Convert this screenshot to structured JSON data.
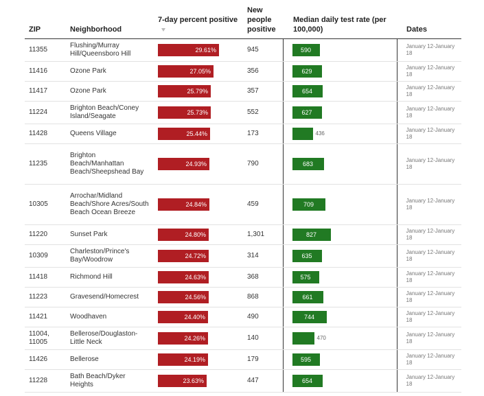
{
  "headers": {
    "zip": "ZIP",
    "neighborhood": "Neighborhood",
    "positive": "7-day percent positive",
    "new_people": "New people positive",
    "test_rate": "Median daily test rate (per 100,000)",
    "dates": "Dates"
  },
  "colors": {
    "positive_bar": "#b01e23",
    "rate_bar": "#217a23"
  },
  "rows": [
    {
      "zip": "11355",
      "neighborhood": "Flushing/Murray Hill/Queensboro Hill",
      "positive": "29.61%",
      "positive_value": 29.61,
      "new_people": "945",
      "rate": "590",
      "rate_value": 590,
      "dates": "January 12-January 18"
    },
    {
      "zip": "11416",
      "neighborhood": "Ozone Park",
      "positive": "27.05%",
      "positive_value": 27.05,
      "new_people": "356",
      "rate": "629",
      "rate_value": 629,
      "dates": "January 12-January 18"
    },
    {
      "zip": "11417",
      "neighborhood": "Ozone Park",
      "positive": "25.79%",
      "positive_value": 25.79,
      "new_people": "357",
      "rate": "654",
      "rate_value": 654,
      "dates": "January 12-January 18"
    },
    {
      "zip": "11224",
      "neighborhood": "Brighton Beach/Coney Island/Seagate",
      "positive": "25.73%",
      "positive_value": 25.73,
      "new_people": "552",
      "rate": "627",
      "rate_value": 627,
      "dates": "January 12-January 18"
    },
    {
      "zip": "11428",
      "neighborhood": "Queens Village",
      "positive": "25.44%",
      "positive_value": 25.44,
      "new_people": "173",
      "rate": "436",
      "rate_value": 436,
      "dates": "January 12-January 18"
    },
    {
      "zip": "11235",
      "neighborhood": "Brighton Beach/Manhattan Beach/Sheepshead Bay",
      "positive": "24.93%",
      "positive_value": 24.93,
      "new_people": "790",
      "rate": "683",
      "rate_value": 683,
      "dates": "January 12-January 18"
    },
    {
      "zip": "10305",
      "neighborhood": "Arrochar/Midland Beach/Shore Acres/South Beach Ocean Breeze",
      "positive": "24.84%",
      "positive_value": 24.84,
      "new_people": "459",
      "rate": "709",
      "rate_value": 709,
      "dates": "January 12-January 18"
    },
    {
      "zip": "11220",
      "neighborhood": "Sunset Park",
      "positive": "24.80%",
      "positive_value": 24.8,
      "new_people": "1,301",
      "rate": "827",
      "rate_value": 827,
      "dates": "January 12-January 18"
    },
    {
      "zip": "10309",
      "neighborhood": "Charleston/Prince's Bay/Woodrow",
      "positive": "24.72%",
      "positive_value": 24.72,
      "new_people": "314",
      "rate": "635",
      "rate_value": 635,
      "dates": "January 12-January 18"
    },
    {
      "zip": "11418",
      "neighborhood": "Richmond Hill",
      "positive": "24.63%",
      "positive_value": 24.63,
      "new_people": "368",
      "rate": "575",
      "rate_value": 575,
      "dates": "January 12-January 18"
    },
    {
      "zip": "11223",
      "neighborhood": "Gravesend/Homecrest",
      "positive": "24.56%",
      "positive_value": 24.56,
      "new_people": "868",
      "rate": "661",
      "rate_value": 661,
      "dates": "January 12-January 18"
    },
    {
      "zip": "11421",
      "neighborhood": "Woodhaven",
      "positive": "24.40%",
      "positive_value": 24.4,
      "new_people": "490",
      "rate": "744",
      "rate_value": 744,
      "dates": "January 12-January 18"
    },
    {
      "zip": "11004, 11005",
      "neighborhood": "Bellerose/Douglaston-Little Neck",
      "positive": "24.26%",
      "positive_value": 24.26,
      "new_people": "140",
      "rate": "470",
      "rate_value": 470,
      "dates": "January 12-January 18"
    },
    {
      "zip": "11426",
      "neighborhood": "Bellerose",
      "positive": "24.19%",
      "positive_value": 24.19,
      "new_people": "179",
      "rate": "595",
      "rate_value": 595,
      "dates": "January 12-January 18"
    },
    {
      "zip": "11228",
      "neighborhood": "Bath Beach/Dyker Heights",
      "positive": "23.63%",
      "positive_value": 23.63,
      "new_people": "447",
      "rate": "654",
      "rate_value": 654,
      "dates": "January 12-January 18"
    }
  ]
}
